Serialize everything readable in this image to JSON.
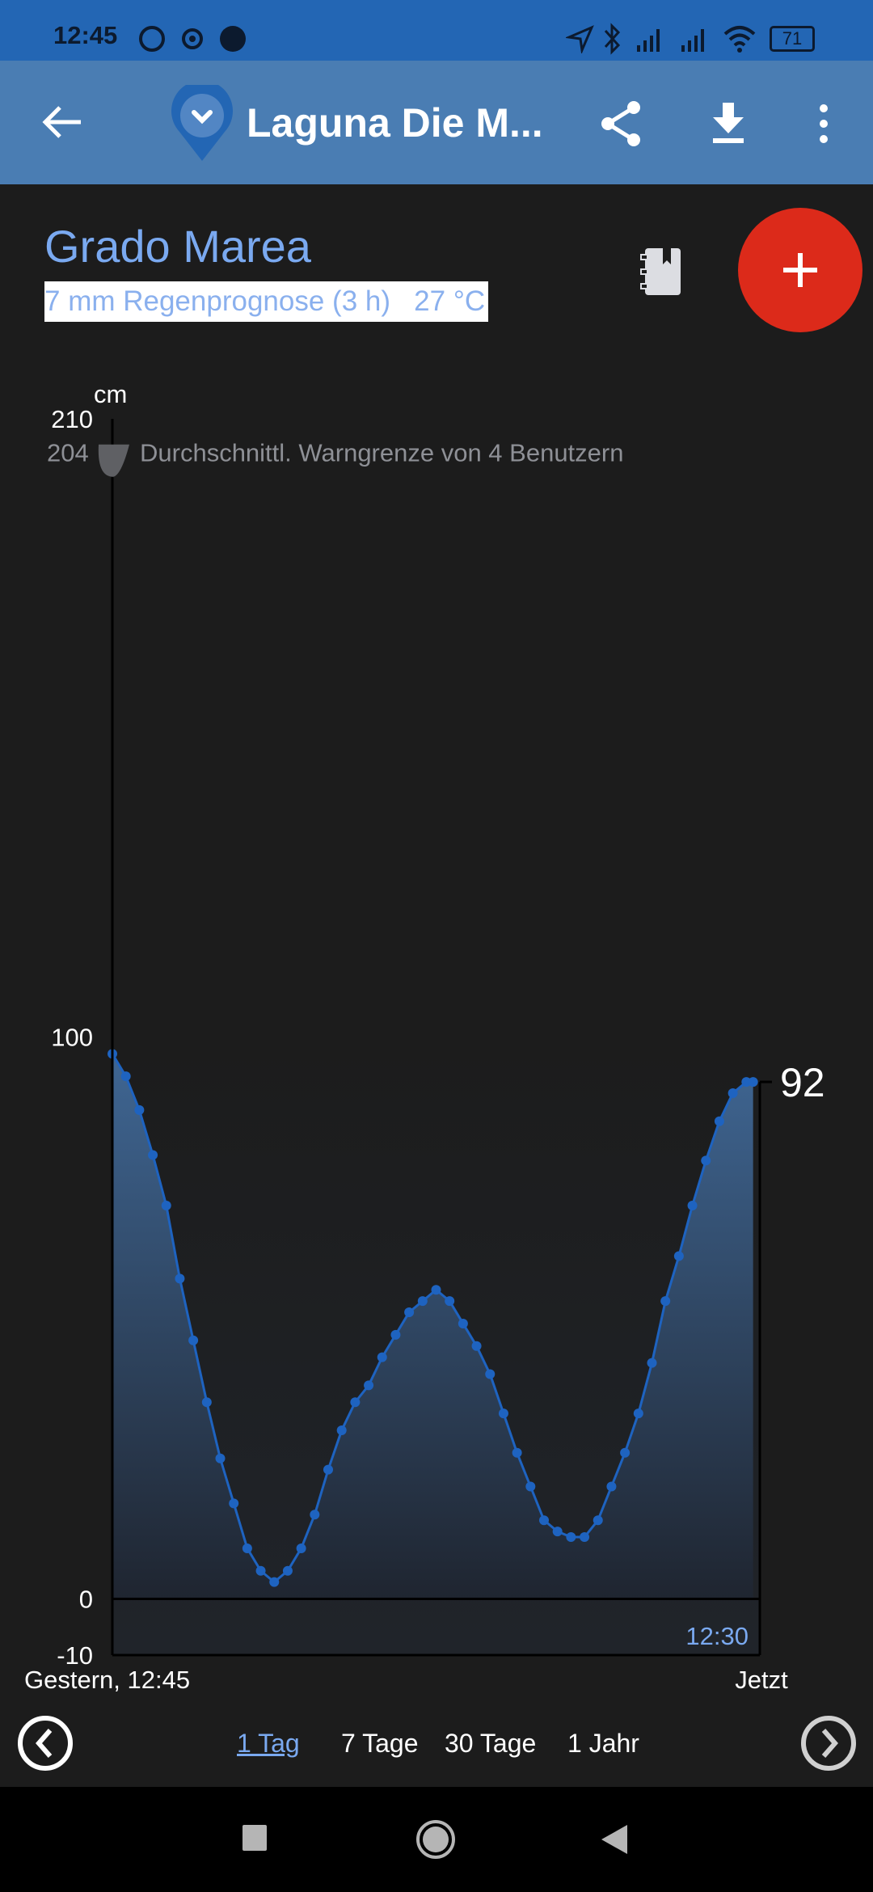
{
  "status_bar": {
    "time": "12:45",
    "battery": "71",
    "icons": [
      "whatsapp-icon",
      "location-target-icon",
      "dot-icon",
      "navigation-icon",
      "bluetooth-icon",
      "signal-icon",
      "signal-icon",
      "wifi-icon",
      "battery-icon"
    ]
  },
  "app_bar": {
    "title": "Laguna Die M...",
    "icons": [
      "back-arrow-icon",
      "location-pin-icon",
      "share-icon",
      "download-icon",
      "more-vert-icon"
    ]
  },
  "station": {
    "name": "Grado Marea",
    "info": "7 mm Regenprognose (3 h)   27 °C"
  },
  "colors": {
    "accent": "#7aa9f0",
    "fab": "#dc2a1a",
    "line": "#1e63c0",
    "appbar": "#4a7db3",
    "statusbar": "#2366b4"
  },
  "chart_data": {
    "type": "area",
    "ylabel": "cm",
    "ylim": [
      -10,
      210
    ],
    "y_ticks": [
      "210",
      "100",
      "0",
      "-10"
    ],
    "x_start_label": "Gestern, 12:45",
    "x_end_label": "Jetzt",
    "last_time_label": "12:30",
    "current_value": "92",
    "warning": {
      "value": 204,
      "label": "204",
      "text": "Durchschnittl. Warngrenze von 4 Benutzern"
    },
    "times": [
      "12:45",
      "13:15",
      "13:45",
      "14:15",
      "14:45",
      "15:15",
      "15:45",
      "16:15",
      "16:45",
      "17:15",
      "17:45",
      "18:15",
      "18:45",
      "19:15",
      "19:45",
      "20:15",
      "20:45",
      "21:15",
      "21:45",
      "22:15",
      "22:45",
      "23:15",
      "23:45",
      "00:15",
      "00:45",
      "01:15",
      "01:45",
      "02:15",
      "02:45",
      "03:15",
      "03:45",
      "04:15",
      "04:45",
      "05:15",
      "05:45",
      "06:15",
      "06:45",
      "07:15",
      "07:45",
      "08:15",
      "08:45",
      "09:15",
      "09:45",
      "10:15",
      "10:45",
      "11:15",
      "11:45",
      "12:15",
      "12:30"
    ],
    "values": [
      97,
      93,
      87,
      79,
      70,
      57,
      46,
      35,
      25,
      17,
      9,
      5,
      3,
      5,
      9,
      15,
      23,
      30,
      35,
      38,
      43,
      47,
      51,
      53,
      55,
      53,
      49,
      45,
      40,
      33,
      26,
      20,
      14,
      12,
      11,
      11,
      14,
      20,
      26,
      33,
      42,
      53,
      61,
      70,
      78,
      85,
      90,
      92,
      92
    ]
  },
  "range_tabs": {
    "items": [
      "1 Tag",
      "7 Tage",
      "30 Tage",
      "1 Jahr"
    ],
    "selected": "1 Tag"
  }
}
